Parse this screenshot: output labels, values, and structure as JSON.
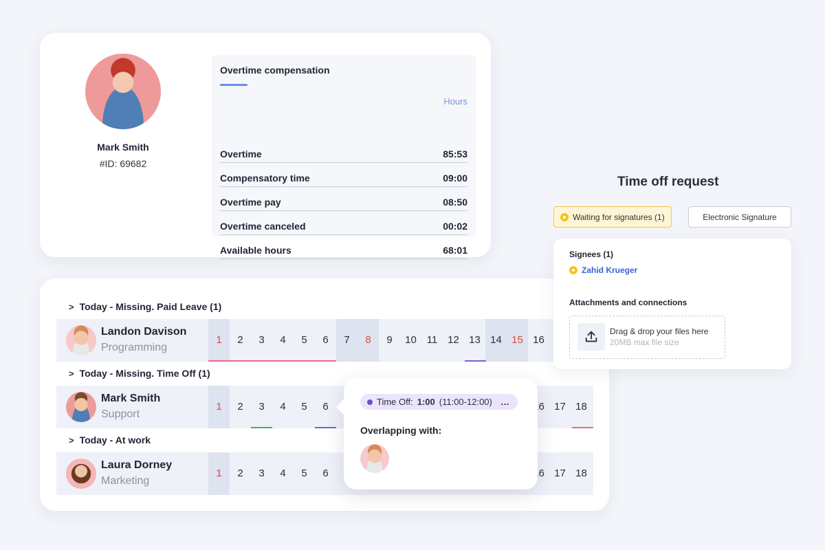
{
  "profile": {
    "name": "Mark Smith",
    "id": "#ID: 69682"
  },
  "overtime": {
    "title": "Overtime compensation",
    "column_label": "Hours",
    "rows": [
      {
        "label": "Overtime",
        "value": "85:53"
      },
      {
        "label": "Compensatory time",
        "value": "09:00"
      },
      {
        "label": "Overtime pay",
        "value": "08:50"
      },
      {
        "label": "Overtime canceled",
        "value": "00:02"
      },
      {
        "label": "Available hours",
        "value": "68:01"
      }
    ]
  },
  "schedule": {
    "groups": [
      {
        "label": "Today - Missing. Paid Leave (1)"
      },
      {
        "label": "Today - Missing. Time Off (1)"
      },
      {
        "label": "Today - At work"
      }
    ],
    "employees": [
      {
        "name": "Landon Davison",
        "department": "Programming",
        "days": [
          "1",
          "2",
          "3",
          "4",
          "5",
          "6",
          "7",
          "8",
          "9",
          "10",
          "11",
          "12",
          "13",
          "14",
          "15",
          "16"
        ]
      },
      {
        "name": "Mark Smith",
        "department": "Support",
        "days": [
          "1",
          "2",
          "3",
          "4",
          "5",
          "6",
          "16",
          "17",
          "18"
        ]
      },
      {
        "name": "Laura Dorney",
        "department": "Marketing",
        "days": [
          "1",
          "2",
          "3",
          "4",
          "5",
          "6",
          "16",
          "17",
          "18"
        ]
      }
    ],
    "colors": {
      "red_day": "#e04848",
      "paid_leave": "#e8668a",
      "time_off": "#7a5fd6",
      "at_work": "#4caf50"
    }
  },
  "popup": {
    "pill_prefix": "Time Off:",
    "pill_duration": "1:00",
    "pill_range": "(11:00-12:00)",
    "more_icon": "…",
    "overlap_label": "Overlapping with:"
  },
  "time_off_request": {
    "title": "Time off request",
    "waiting_label": "Waiting for signatures (1)",
    "esig_label": "Electronic Signature",
    "signees_title": "Signees  (1)",
    "signee_name": "Zahid Krueger",
    "attachments_title": "Attachments and connections",
    "drop_main": "Drag & drop your files here",
    "drop_sub": "20MB max file size"
  }
}
